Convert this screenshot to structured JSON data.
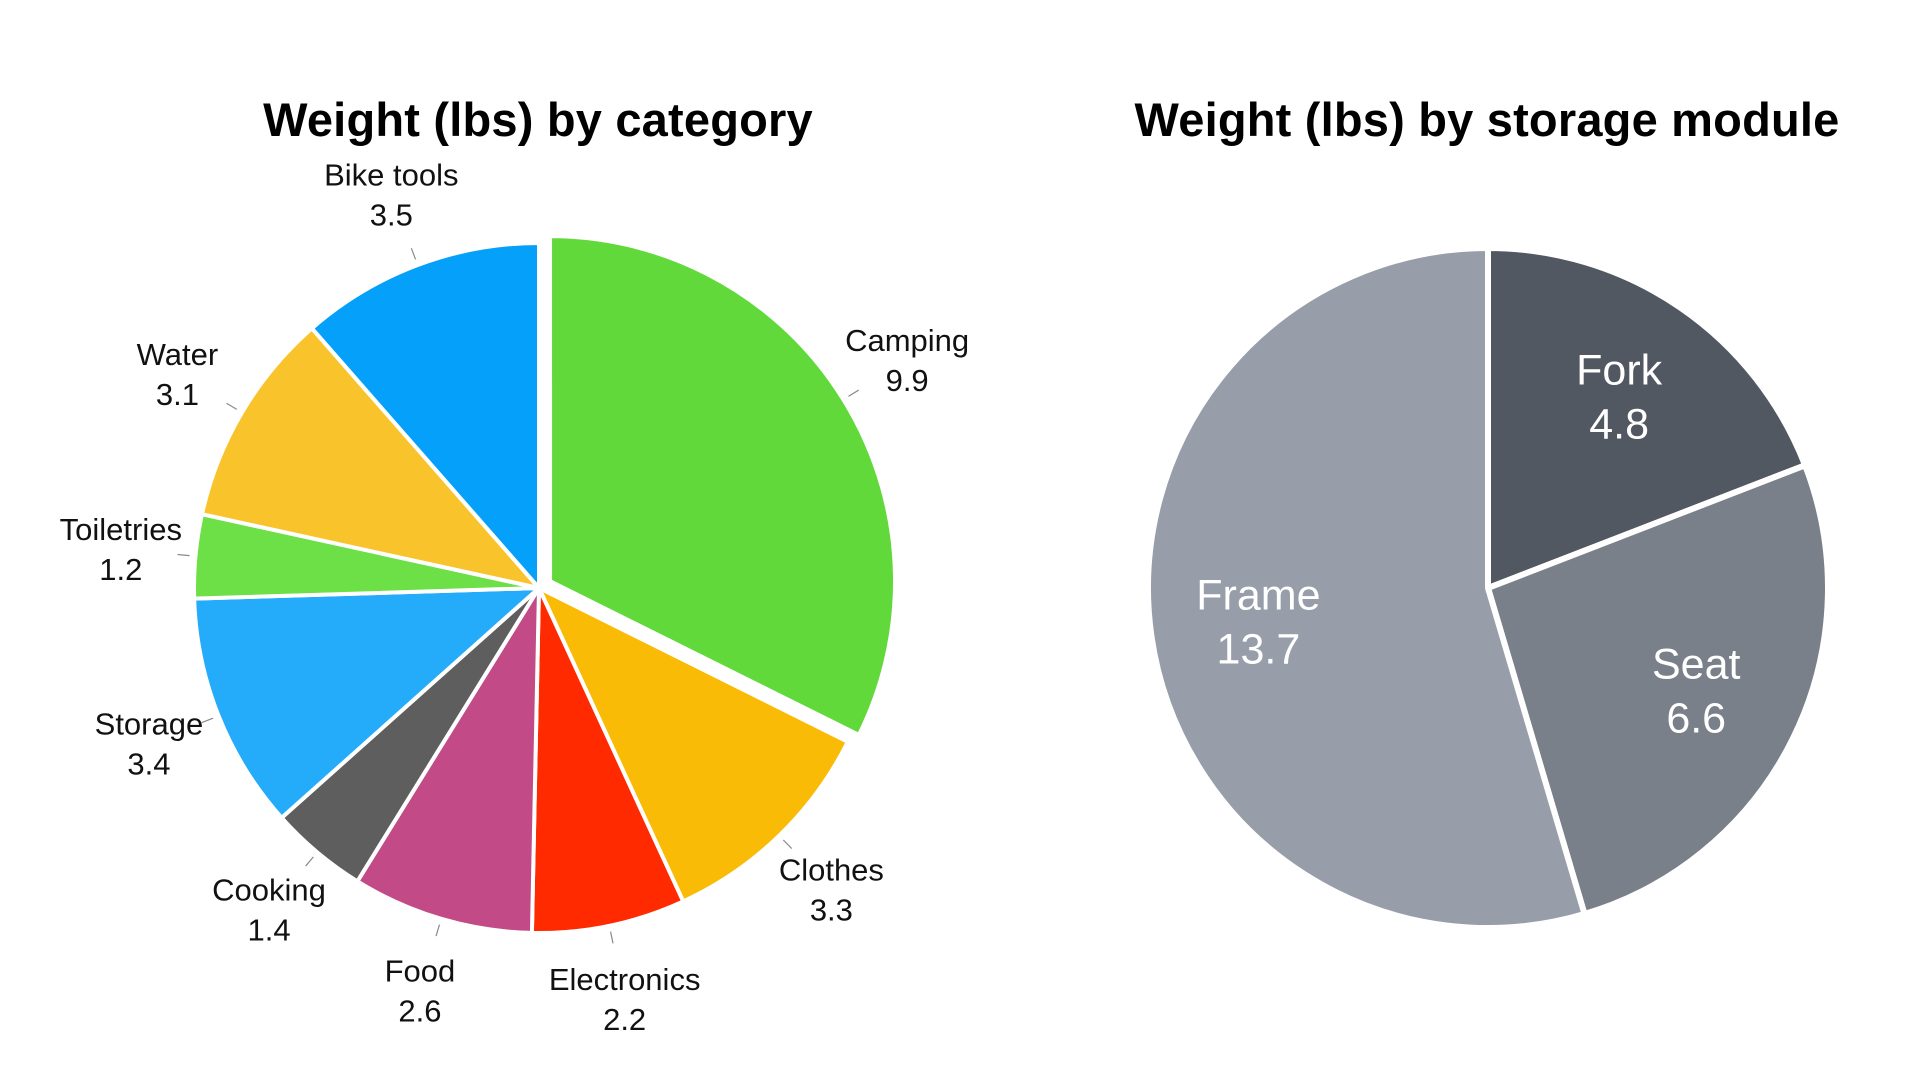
{
  "chart_data": [
    {
      "type": "pie",
      "title": "Weight (lbs) by category",
      "categories": [
        "Camping",
        "Clothes",
        "Electronics",
        "Food",
        "Cooking",
        "Storage",
        "Toiletries",
        "Water",
        "Bike tools"
      ],
      "values": [
        9.9,
        3.3,
        2.2,
        2.6,
        1.4,
        3.4,
        1.2,
        3.1,
        3.5
      ],
      "value_labels": [
        "9.9",
        "3.3",
        "2.2",
        "2.6",
        "1.4",
        "3.4",
        "1.2",
        "3.1",
        "3.5"
      ],
      "colors": [
        "#62d93b",
        "#f9bb05",
        "#ff2a00",
        "#c24a86",
        "#5e5e5e",
        "#24acfb",
        "#6de048",
        "#f9c32b",
        "#04a0f9"
      ],
      "label_position": "outside",
      "exploded": "Camping",
      "legend": "none"
    },
    {
      "type": "pie",
      "title": "Weight (lbs) by storage module",
      "categories": [
        "Fork",
        "Seat",
        "Frame"
      ],
      "values": [
        4.8,
        6.6,
        13.7
      ],
      "value_labels": [
        "4.8",
        "6.6",
        "13.7"
      ],
      "colors": [
        "#525861",
        "#7a8089",
        "#979ea9"
      ],
      "label_position": "inside",
      "legend": "none"
    }
  ]
}
